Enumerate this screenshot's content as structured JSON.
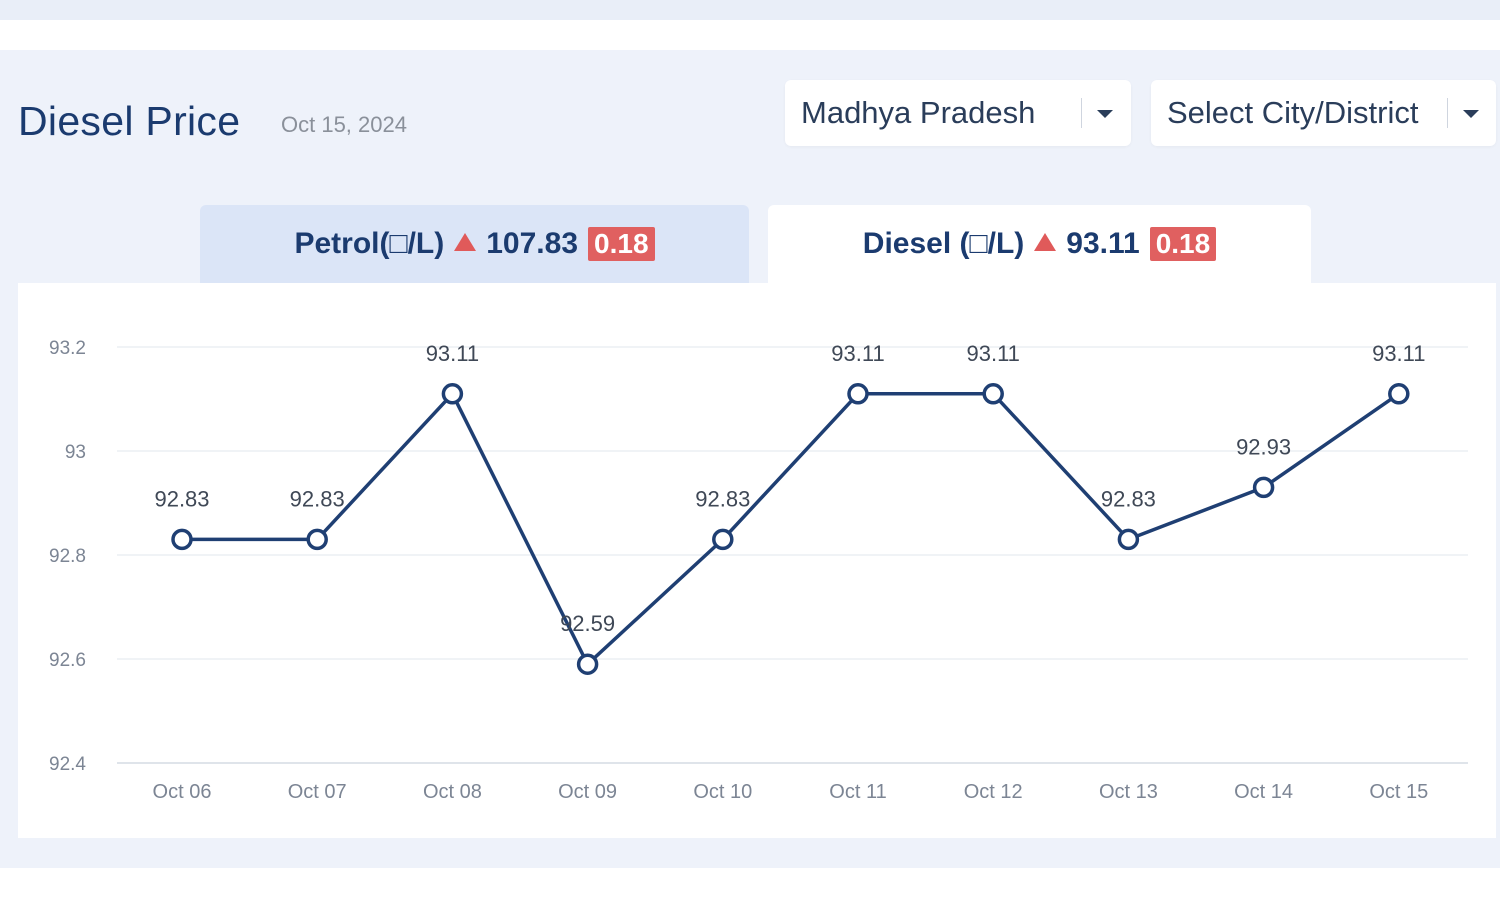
{
  "header": {
    "title": "Diesel Price",
    "date": "Oct 15, 2024"
  },
  "filters": {
    "state": "Madhya Pradesh",
    "city_placeholder": "Select City/District"
  },
  "tabs": [
    {
      "label": "Petrol(□/L)",
      "price": "107.83",
      "change": "0.18",
      "trend": "up",
      "active": false
    },
    {
      "label": "Diesel (□/L)",
      "price": "93.11",
      "change": "0.18",
      "trend": "up",
      "active": true
    }
  ],
  "colors": {
    "title": "#1b3b6f",
    "line": "#1f3f73",
    "badge": "#e06060",
    "active_tab": "#ffffff",
    "inactive_tab": "#dbe5f7"
  },
  "icons": {
    "dropdown": "chevron-down-icon",
    "trend": "triangle-up-icon"
  },
  "chart_data": {
    "type": "line",
    "categories": [
      "Oct 06",
      "Oct 07",
      "Oct 08",
      "Oct 09",
      "Oct 10",
      "Oct 11",
      "Oct 12",
      "Oct 13",
      "Oct 14",
      "Oct 15"
    ],
    "series": [
      {
        "values": [
          92.83,
          92.83,
          93.11,
          92.59,
          92.83,
          93.11,
          93.11,
          92.83,
          92.93,
          93.11
        ]
      }
    ],
    "data_labels": [
      "92.83",
      "92.83",
      "93.11",
      "92.59",
      "92.83",
      "93.11",
      "93.11",
      "92.83",
      "92.93",
      "93.11"
    ],
    "y_ticks": [
      "92.4",
      "92.6",
      "92.8",
      "93",
      "93.2"
    ],
    "ylim": [
      92.4,
      93.2
    ],
    "grid": true,
    "legend": false,
    "title": "",
    "xlabel": "",
    "ylabel": ""
  }
}
